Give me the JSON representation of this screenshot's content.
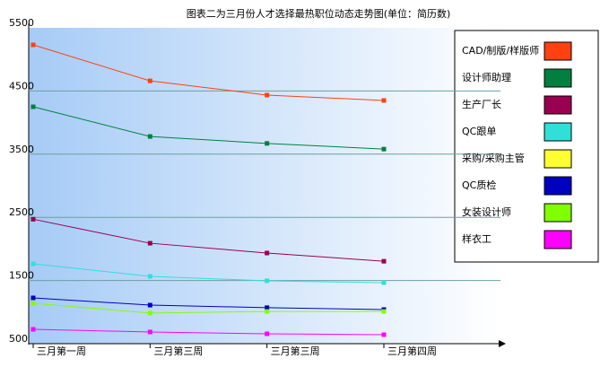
{
  "chart_data": {
    "type": "line",
    "title": "图表二为三月份人才选择最热职位动态走势图(单位：简历数)",
    "categories": [
      "三月第一周",
      "三月第三周",
      "三月第三周",
      "三月第四周"
    ],
    "series": [
      {
        "name": "CAD/制版/样版师",
        "color": "#ff4010",
        "values": [
          5230,
          4660,
          4435,
          4350
        ]
      },
      {
        "name": "设计师助理",
        "color": "#008040",
        "values": [
          4250,
          3780,
          3670,
          3580
        ]
      },
      {
        "name": "生产厂长",
        "color": "#990050",
        "values": [
          2470,
          2090,
          1935,
          1805
        ]
      },
      {
        "name": "QC跟单",
        "color": "#30e0d8",
        "values": [
          1765,
          1565,
          1495,
          1465
        ]
      },
      {
        "name": "采购/采购主管",
        "color": "#ffff30",
        "values": [
          null,
          null,
          null,
          null
        ]
      },
      {
        "name": "QC质检",
        "color": "#0000c0",
        "values": [
          1225,
          1110,
          1070,
          1040
        ]
      },
      {
        "name": "女装设计师",
        "color": "#80ff00",
        "values": [
          1140,
          985,
          1010,
          1010
        ]
      },
      {
        "name": "样衣工",
        "color": "#ff00ff",
        "values": [
          727,
          685,
          656,
          642
        ]
      }
    ],
    "ylim": [
      500,
      5500
    ],
    "yticks": [
      500,
      1500,
      2500,
      3500,
      4500,
      5500
    ],
    "grid": true,
    "legend": "right"
  }
}
